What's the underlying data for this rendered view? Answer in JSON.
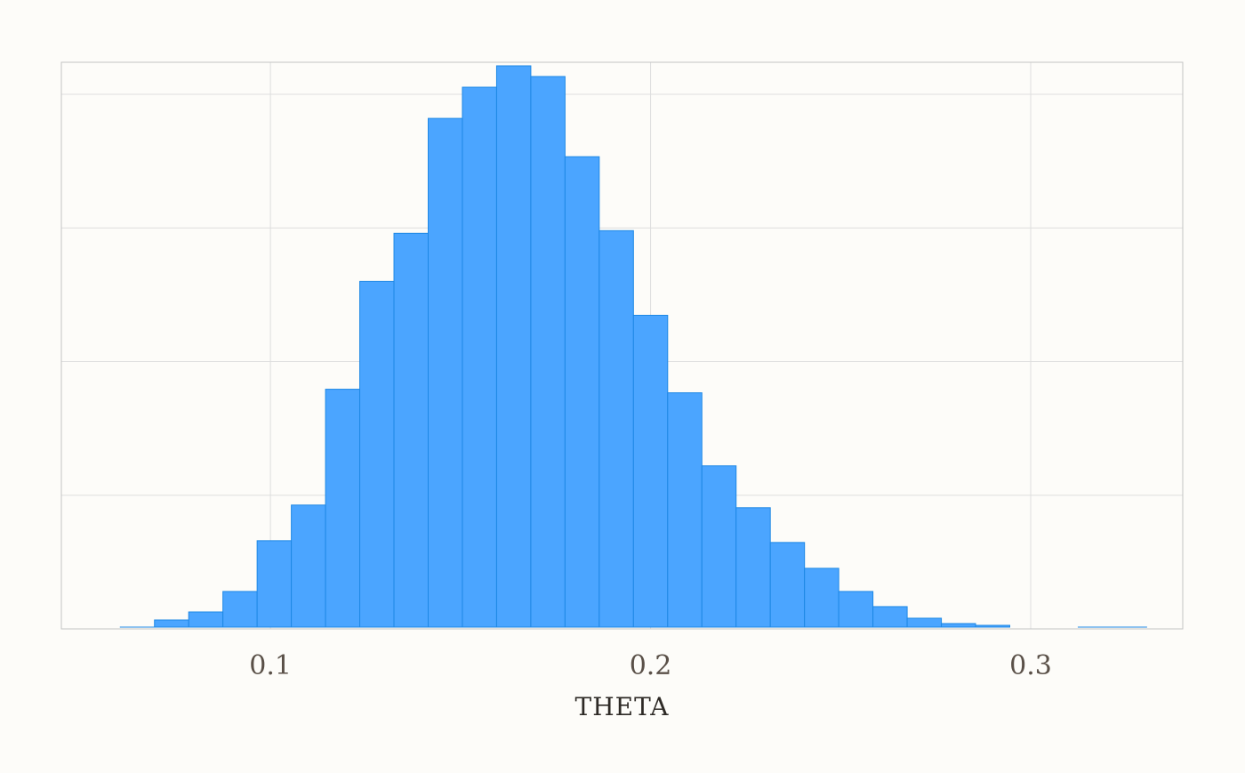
{
  "chart_data": {
    "type": "bar",
    "title": "",
    "xlabel": "THETA",
    "ylabel": "",
    "xlim": [
      0.045,
      0.34
    ],
    "ylim": [
      0,
      632
    ],
    "x_ticks": [
      0.1,
      0.2,
      0.3
    ],
    "x_tick_labels": [
      "0.1",
      "0.2",
      "0.3"
    ],
    "y_grid_values": [
      150,
      300,
      450,
      600
    ],
    "grid": true,
    "legend": "none",
    "bins": [
      {
        "x0": 0.0605,
        "x1": 0.0695,
        "count": 2
      },
      {
        "x0": 0.0695,
        "x1": 0.0785,
        "count": 10
      },
      {
        "x0": 0.0785,
        "x1": 0.0875,
        "count": 19
      },
      {
        "x0": 0.0875,
        "x1": 0.0965,
        "count": 42
      },
      {
        "x0": 0.0965,
        "x1": 0.1055,
        "count": 99
      },
      {
        "x0": 0.1055,
        "x1": 0.1145,
        "count": 139
      },
      {
        "x0": 0.1145,
        "x1": 0.1235,
        "count": 269
      },
      {
        "x0": 0.1235,
        "x1": 0.1325,
        "count": 390
      },
      {
        "x0": 0.1325,
        "x1": 0.1415,
        "count": 444
      },
      {
        "x0": 0.1415,
        "x1": 0.1505,
        "count": 573
      },
      {
        "x0": 0.1505,
        "x1": 0.1595,
        "count": 608
      },
      {
        "x0": 0.1595,
        "x1": 0.1685,
        "count": 632
      },
      {
        "x0": 0.1685,
        "x1": 0.1775,
        "count": 620
      },
      {
        "x0": 0.1775,
        "x1": 0.1865,
        "count": 530
      },
      {
        "x0": 0.1865,
        "x1": 0.1955,
        "count": 447
      },
      {
        "x0": 0.1955,
        "x1": 0.2045,
        "count": 352
      },
      {
        "x0": 0.2045,
        "x1": 0.2135,
        "count": 265
      },
      {
        "x0": 0.2135,
        "x1": 0.2225,
        "count": 183
      },
      {
        "x0": 0.2225,
        "x1": 0.2315,
        "count": 136
      },
      {
        "x0": 0.2315,
        "x1": 0.2405,
        "count": 97
      },
      {
        "x0": 0.2405,
        "x1": 0.2495,
        "count": 68
      },
      {
        "x0": 0.2495,
        "x1": 0.2585,
        "count": 42
      },
      {
        "x0": 0.2585,
        "x1": 0.2675,
        "count": 25
      },
      {
        "x0": 0.2675,
        "x1": 0.2765,
        "count": 12
      },
      {
        "x0": 0.2765,
        "x1": 0.2855,
        "count": 6
      },
      {
        "x0": 0.2855,
        "x1": 0.2945,
        "count": 4
      },
      {
        "x0": 0.2945,
        "x1": 0.3035,
        "count": 1
      },
      {
        "x0": 0.3035,
        "x1": 0.3125,
        "count": 1
      },
      {
        "x0": 0.3125,
        "x1": 0.3215,
        "count": 2
      },
      {
        "x0": 0.3215,
        "x1": 0.3305,
        "count": 2
      }
    ],
    "colors": {
      "bar_fill": "#4ba5ff",
      "bar_stroke": "#1e88e5",
      "grid": "#dedede",
      "axis": "#c4c4c4",
      "tick_label": "#5a5048",
      "axis_label": "#2e2a26",
      "background": "#fdfcf9"
    }
  }
}
